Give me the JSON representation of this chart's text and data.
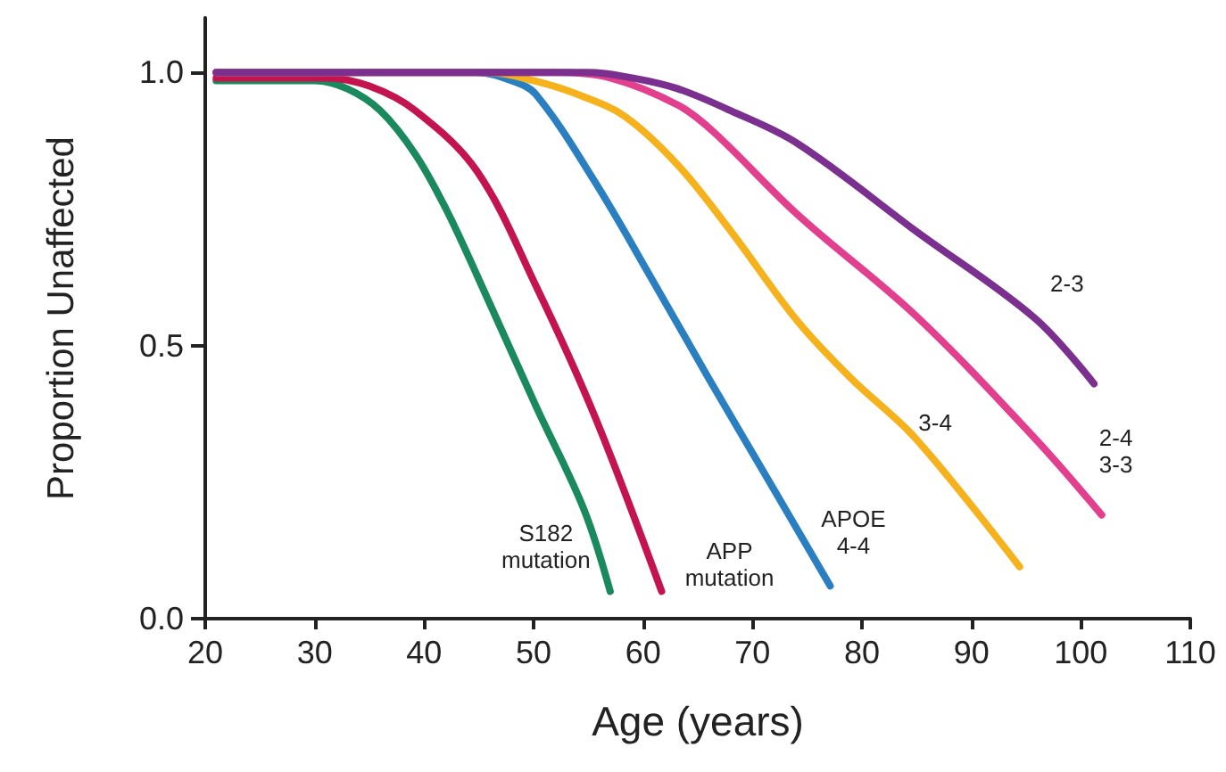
{
  "chart_data": {
    "type": "line",
    "xlabel": "Age (years)",
    "ylabel": "Proportion Unaffected",
    "xlim": [
      20,
      110
    ],
    "xticks": [
      20,
      30,
      40,
      50,
      60,
      70,
      80,
      90,
      100,
      110
    ],
    "ylim": [
      0,
      1.1
    ],
    "yticks": [
      {
        "value": 0,
        "label": "0.0"
      },
      {
        "value": 0.5,
        "label": "0.5"
      },
      {
        "value": 1,
        "label": "1.0"
      }
    ],
    "grid": false,
    "legend": false,
    "marker": "none",
    "line_style": "solid",
    "series": [
      {
        "name": "S182 mutation",
        "color": "#1a8a5e",
        "x": [
          21,
          30,
          33,
          36,
          39.2,
          42,
          44.8,
          50.2,
          54.6,
          57
        ],
        "values": [
          0.985,
          0.985,
          0.97,
          0.93,
          0.85,
          0.75,
          0.63,
          0.39,
          0.2,
          0.05
        ]
      },
      {
        "name": "APP mutation",
        "color": "#c4144f",
        "x": [
          21,
          31,
          35,
          39.2,
          44.8,
          50.2,
          55.6,
          61.7
        ],
        "values": [
          0.99,
          0.99,
          0.975,
          0.93,
          0.82,
          0.61,
          0.37,
          0.05
        ]
      },
      {
        "name": "APOE 4-4",
        "color": "#2a7fc1",
        "x": [
          21,
          44.8,
          48,
          50.2,
          55.6,
          61,
          66,
          72,
          77.1
        ],
        "values": [
          1,
          1,
          0.985,
          0.96,
          0.8,
          0.615,
          0.44,
          0.235,
          0.06
        ]
      },
      {
        "name": "3-4",
        "color": "#f5b21c",
        "x": [
          21,
          46,
          50,
          54,
          58.3,
          63.2,
          68,
          74.1,
          79,
          84.9,
          94.4
        ],
        "values": [
          1,
          1,
          0.985,
          0.96,
          0.92,
          0.83,
          0.71,
          0.545,
          0.44,
          0.33,
          0.095
        ]
      },
      {
        "name": "2-4 3-3",
        "color": "#e2408f",
        "x": [
          21,
          52,
          57,
          63.2,
          66.5,
          74.1,
          84.9,
          95.8,
          101.9
        ],
        "values": [
          1,
          1,
          0.99,
          0.94,
          0.89,
          0.74,
          0.555,
          0.33,
          0.19
        ]
      },
      {
        "name": "2-3",
        "color": "#7b2f8e",
        "x": [
          21,
          55,
          59,
          63.2,
          68,
          74.1,
          84.9,
          95.8,
          101.2
        ],
        "values": [
          1,
          1,
          0.99,
          0.97,
          0.93,
          0.87,
          0.71,
          0.55,
          0.43
        ]
      }
    ]
  }
}
